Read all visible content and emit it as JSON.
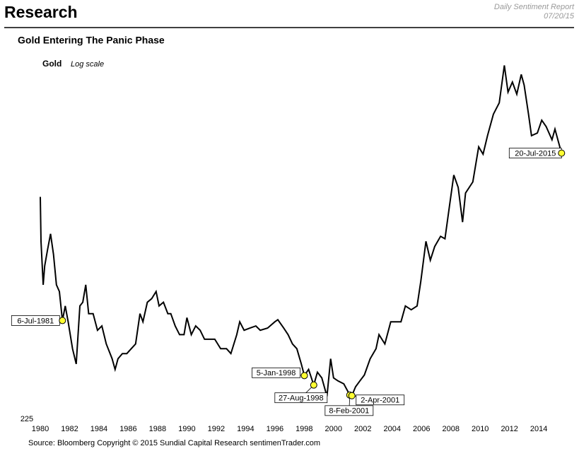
{
  "header": {
    "title": "Research",
    "report": "Daily Sentiment Report",
    "date": "07/20/15"
  },
  "chart_data": {
    "type": "line",
    "title": "Gold Entering The Panic Phase",
    "series_label": "Gold",
    "scale_note": "Log scale",
    "log": true,
    "series": [
      {
        "name": "Gold",
        "color": "#000000",
        "x": [
          1980.0,
          1980.05,
          1980.2,
          1980.3,
          1980.5,
          1980.7,
          1980.9,
          1981.1,
          1981.3,
          1981.51,
          1981.7,
          1981.9,
          1982.2,
          1982.45,
          1982.7,
          1982.9,
          1983.1,
          1983.3,
          1983.6,
          1983.9,
          1984.2,
          1984.5,
          1984.9,
          1985.1,
          1985.3,
          1985.6,
          1985.9,
          1986.2,
          1986.5,
          1986.8,
          1987.0,
          1987.3,
          1987.6,
          1987.9,
          1988.1,
          1988.4,
          1988.7,
          1988.9,
          1989.2,
          1989.5,
          1989.8,
          1990.0,
          1990.3,
          1990.6,
          1990.9,
          1991.2,
          1991.5,
          1991.9,
          1992.3,
          1992.7,
          1993.0,
          1993.4,
          1993.6,
          1993.9,
          1994.3,
          1994.7,
          1995.0,
          1995.5,
          1996.0,
          1996.2,
          1996.6,
          1996.9,
          1997.2,
          1997.5,
          1997.8,
          1998.01,
          1998.3,
          1998.65,
          1998.9,
          1999.2,
          1999.55,
          1999.8,
          2000.0,
          2000.3,
          2000.7,
          2001.11,
          2001.25,
          2001.5,
          2001.8,
          2002.1,
          2002.5,
          2002.9,
          2003.1,
          2003.5,
          2003.9,
          2004.2,
          2004.6,
          2004.9,
          2005.3,
          2005.7,
          2005.95,
          2006.3,
          2006.6,
          2006.9,
          2007.3,
          2007.6,
          2007.9,
          2008.2,
          2008.5,
          2008.8,
          2009.0,
          2009.5,
          2009.9,
          2010.2,
          2010.5,
          2010.9,
          2011.3,
          2011.65,
          2011.9,
          2012.2,
          2012.5,
          2012.8,
          2013.0,
          2013.3,
          2013.5,
          2013.9,
          2014.2,
          2014.5,
          2014.9,
          2015.1,
          2015.3,
          2015.55
        ],
        "values": [
          850,
          650,
          500,
          560,
          620,
          680,
          600,
          500,
          480,
          403,
          440,
          400,
          340,
          310,
          440,
          450,
          500,
          420,
          420,
          380,
          390,
          350,
          320,
          300,
          320,
          330,
          330,
          340,
          350,
          420,
          400,
          450,
          460,
          480,
          440,
          450,
          420,
          420,
          390,
          370,
          370,
          410,
          370,
          390,
          380,
          360,
          360,
          360,
          340,
          340,
          330,
          370,
          400,
          380,
          385,
          390,
          380,
          385,
          400,
          405,
          385,
          370,
          350,
          340,
          310,
          289,
          300,
          273,
          295,
          285,
          255,
          320,
          285,
          280,
          275,
          257,
          256,
          270,
          280,
          290,
          320,
          340,
          370,
          350,
          400,
          400,
          400,
          440,
          430,
          440,
          510,
          650,
          580,
          630,
          670,
          660,
          800,
          970,
          900,
          730,
          870,
          930,
          1150,
          1100,
          1230,
          1400,
          1500,
          1880,
          1600,
          1700,
          1580,
          1780,
          1670,
          1400,
          1230,
          1250,
          1350,
          1300,
          1200,
          1280,
          1200,
          1107
        ]
      }
    ],
    "annotations": [
      {
        "label": "6-Jul-1981",
        "x": 1981.51,
        "value": 403
      },
      {
        "label": "5-Jan-1998",
        "x": 1998.01,
        "value": 289
      },
      {
        "label": "27-Aug-1998",
        "x": 1998.65,
        "value": 273
      },
      {
        "label": "8-Feb-2001",
        "x": 2001.11,
        "value": 257
      },
      {
        "label": "2-Apr-2001",
        "x": 2001.25,
        "value": 256
      },
      {
        "label": "20-Jul-2015",
        "x": 2015.55,
        "value": 1107
      }
    ],
    "ylim": [
      225,
      2000
    ],
    "yticks": [
      225
    ],
    "xlim": [
      1979.8,
      2015.9
    ],
    "xticks": [
      1980,
      1982,
      1984,
      1986,
      1988,
      1990,
      1992,
      1994,
      1996,
      1998,
      2000,
      2002,
      2004,
      2006,
      2008,
      2010,
      2012,
      2014
    ],
    "source": "Source:  Bloomberg   Copyright © 2015 Sundial Capital Research  sentimenTrader.com"
  }
}
